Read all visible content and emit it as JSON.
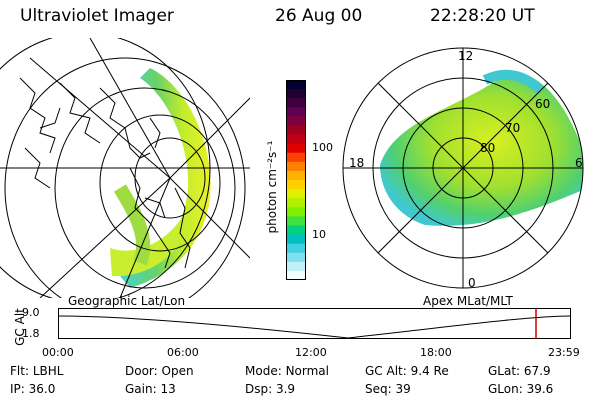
{
  "header": {
    "title": "Ultraviolet Imager",
    "date": "26 Aug 00",
    "time": "22:28:20 UT"
  },
  "left_panel": {
    "caption": "Geographic Lat/Lon"
  },
  "colorbar": {
    "unit_label": "photon cm⁻²s⁻¹",
    "ticks": [
      "100",
      "10"
    ],
    "colors": [
      "#000033",
      "#200033",
      "#400040",
      "#600050",
      "#800040",
      "#a00020",
      "#c00010",
      "#e00000",
      "#ff4000",
      "#ff8000",
      "#ffb000",
      "#ffd000",
      "#e0f000",
      "#b0f000",
      "#80f000",
      "#40e040",
      "#00d080",
      "#00c0c0",
      "#40d0e0",
      "#80e0f0",
      "#c0f0f8",
      "#f0ffff"
    ]
  },
  "right_panel": {
    "caption": "Apex MLat/MLT",
    "mlt_labels": {
      "top": "12",
      "left": "18",
      "right": "6",
      "bottom": "0"
    },
    "lat_labels": [
      "60",
      "70",
      "80"
    ]
  },
  "timeline": {
    "axis_label": "GC Alt",
    "y_ticks": [
      "9.0",
      "1.8"
    ],
    "x_ticks": [
      "00:00",
      "06:00",
      "12:00",
      "18:00",
      "23:59"
    ],
    "marker_color": "#cc0000"
  },
  "status": {
    "row1": [
      {
        "key": "Flt:",
        "val": "LBHL"
      },
      {
        "key": "Door:",
        "val": "Open"
      },
      {
        "key": "Mode:",
        "val": "Normal"
      },
      {
        "key": "GC Alt:",
        "val": "9.4 Re"
      },
      {
        "key": "GLat:",
        "val": "67.9"
      }
    ],
    "row2": [
      {
        "key": "IP:",
        "val": "36.0"
      },
      {
        "key": "Gain:",
        "val": "13"
      },
      {
        "key": "Dsp:",
        "val": "3.9"
      },
      {
        "key": "Seq:",
        "val": "39"
      },
      {
        "key": "GLon:",
        "val": "39.6"
      }
    ]
  }
}
